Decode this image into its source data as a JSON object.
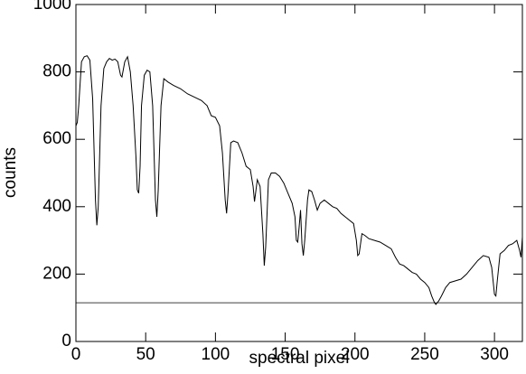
{
  "chart_data": {
    "type": "line",
    "xlabel": "spectral pixel",
    "ylabel": "counts",
    "x": [
      0,
      1,
      2,
      4,
      6,
      8,
      10,
      12,
      14,
      15,
      16,
      18,
      20,
      22,
      24,
      26,
      28,
      30,
      32,
      33,
      35,
      37,
      39,
      41,
      43,
      44,
      45,
      46,
      47,
      49,
      51,
      53,
      55,
      57,
      58,
      59,
      61,
      63,
      66,
      70,
      75,
      80,
      85,
      90,
      94,
      97,
      100,
      103,
      105,
      107,
      108,
      109,
      111,
      113,
      116,
      119,
      122,
      125,
      127,
      128,
      130,
      132,
      134,
      135,
      136,
      138,
      140,
      143,
      146,
      149,
      152,
      155,
      157,
      158,
      159,
      160,
      161,
      162,
      163,
      164,
      166,
      167,
      169,
      171,
      173,
      175,
      178,
      181,
      184,
      187,
      190,
      193,
      196,
      199,
      201,
      202,
      203,
      205,
      207,
      210,
      214,
      218,
      222,
      226,
      229,
      232,
      235,
      238,
      241,
      244,
      247,
      250,
      253,
      255,
      257,
      258,
      260,
      262,
      265,
      268,
      272,
      276,
      280,
      284,
      288,
      292,
      296,
      298,
      300,
      301,
      302,
      304,
      307,
      310,
      313,
      316,
      318,
      319,
      320
    ],
    "series": [
      {
        "color": "#000000",
        "values": [
          640,
          650,
          700,
          830,
          845,
          848,
          835,
          720,
          420,
          345,
          400,
          700,
          810,
          830,
          840,
          835,
          838,
          830,
          790,
          785,
          830,
          845,
          800,
          700,
          550,
          450,
          440,
          520,
          700,
          790,
          805,
          800,
          700,
          420,
          370,
          450,
          700,
          780,
          770,
          760,
          750,
          735,
          725,
          715,
          700,
          670,
          665,
          640,
          560,
          420,
          380,
          440,
          590,
          595,
          590,
          560,
          520,
          510,
          460,
          415,
          480,
          460,
          320,
          225,
          280,
          480,
          500,
          500,
          490,
          470,
          440,
          410,
          370,
          300,
          295,
          340,
          390,
          290,
          255,
          300,
          420,
          450,
          445,
          420,
          390,
          410,
          420,
          410,
          400,
          395,
          380,
          370,
          360,
          350,
          300,
          255,
          260,
          320,
          315,
          305,
          300,
          295,
          285,
          275,
          250,
          230,
          225,
          215,
          205,
          200,
          185,
          175,
          160,
          135,
          115,
          110,
          120,
          135,
          160,
          175,
          180,
          185,
          200,
          220,
          240,
          255,
          250,
          220,
          140,
          135,
          180,
          260,
          270,
          285,
          290,
          300,
          270,
          250,
          310
        ]
      }
    ],
    "reference_line": 115,
    "xlim": [
      0,
      320
    ],
    "xticks": [
      0,
      50,
      100,
      150,
      200,
      250,
      300
    ],
    "ylim": [
      0,
      1000
    ],
    "yticks": [
      0,
      200,
      400,
      600,
      800,
      1000
    ]
  }
}
